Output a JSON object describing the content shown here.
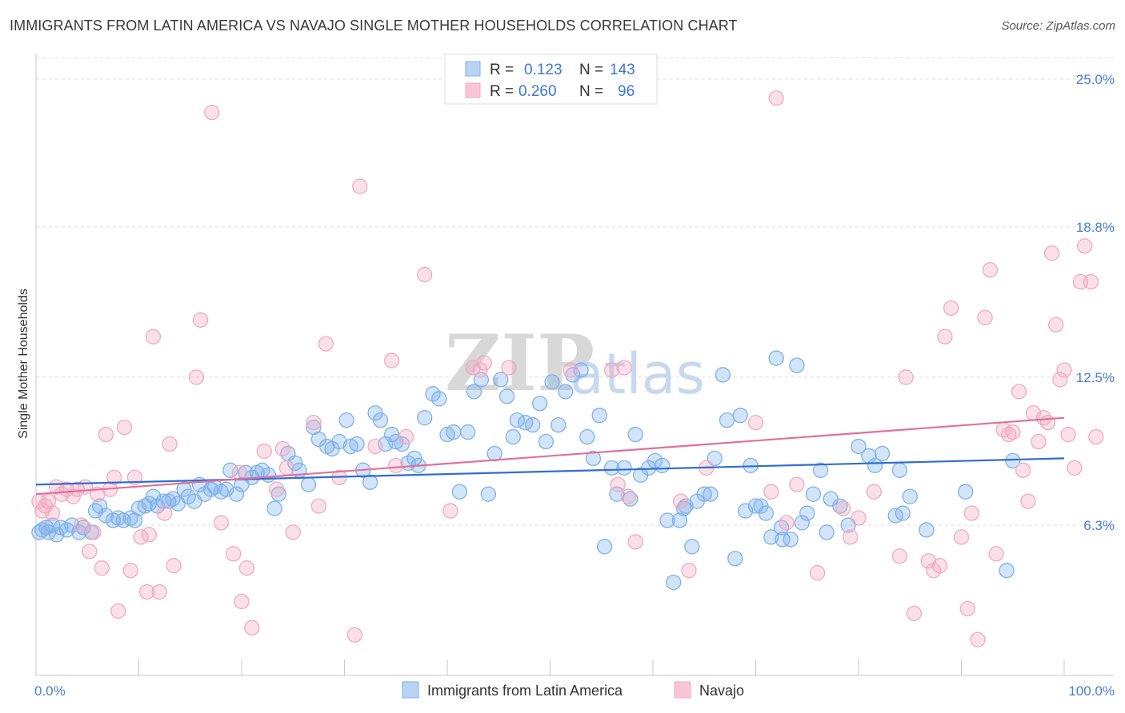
{
  "title": "IMMIGRANTS FROM LATIN AMERICA VS NAVAJO SINGLE MOTHER HOUSEHOLDS CORRELATION CHART",
  "source": "Source: ZipAtlas.com",
  "watermark": {
    "zip": "ZIP",
    "atlas": "atlas"
  },
  "chart_data": {
    "type": "scatter",
    "title": "IMMIGRANTS FROM LATIN AMERICA VS NAVAJO SINGLE MOTHER HOUSEHOLDS CORRELATION CHART",
    "xlabel": "",
    "ylabel": "Single Mother Households",
    "xlim": [
      0,
      100
    ],
    "ylim": [
      0,
      26
    ],
    "y_ticks": [
      6.3,
      12.5,
      18.8,
      25.0
    ],
    "y_tick_labels": [
      "6.3%",
      "12.5%",
      "18.8%",
      "25.0%"
    ],
    "x_tick_labels": [
      "0.0%",
      "100.0%"
    ],
    "grid": true,
    "legend_stats": [
      {
        "r_label": "R =",
        "r": "0.123",
        "n_label": "N =",
        "n": "143"
      },
      {
        "r_label": "R =",
        "r": "0.260",
        "n_label": "N =",
        "n": "96"
      }
    ],
    "series": [
      {
        "name": "Immigrants from Latin America",
        "color": "#7eb1ea",
        "line_color": "#2f6fd0",
        "trend": [
          [
            0,
            8.0
          ],
          [
            100,
            9.1
          ]
        ],
        "points": [
          [
            0.3,
            6.0
          ],
          [
            0.6,
            6.1
          ],
          [
            1.0,
            6.2
          ],
          [
            1.2,
            6.0
          ],
          [
            1.6,
            6.3
          ],
          [
            2.0,
            5.9
          ],
          [
            2.4,
            6.2
          ],
          [
            3.0,
            6.1
          ],
          [
            3.5,
            6.3
          ],
          [
            4.2,
            6.0
          ],
          [
            4.6,
            6.2
          ],
          [
            5.4,
            6.0
          ],
          [
            5.8,
            6.9
          ],
          [
            6.2,
            7.1
          ],
          [
            6.8,
            6.7
          ],
          [
            7.5,
            6.5
          ],
          [
            8.0,
            6.6
          ],
          [
            8.5,
            6.5
          ],
          [
            9.2,
            6.6
          ],
          [
            9.6,
            6.5
          ],
          [
            10.0,
            7.0
          ],
          [
            10.6,
            7.1
          ],
          [
            11.0,
            7.2
          ],
          [
            11.4,
            7.5
          ],
          [
            11.8,
            7.1
          ],
          [
            12.4,
            7.3
          ],
          [
            12.9,
            7.3
          ],
          [
            13.3,
            7.4
          ],
          [
            13.8,
            7.2
          ],
          [
            14.4,
            7.8
          ],
          [
            14.8,
            7.5
          ],
          [
            15.4,
            7.3
          ],
          [
            15.9,
            8.0
          ],
          [
            16.4,
            7.6
          ],
          [
            17.0,
            7.8
          ],
          [
            17.4,
            7.9
          ],
          [
            18.0,
            7.7
          ],
          [
            18.5,
            7.8
          ],
          [
            18.9,
            8.6
          ],
          [
            19.5,
            7.6
          ],
          [
            20.0,
            8.0
          ],
          [
            20.4,
            8.5
          ],
          [
            21.0,
            8.3
          ],
          [
            21.5,
            8.5
          ],
          [
            22.0,
            8.6
          ],
          [
            22.6,
            8.4
          ],
          [
            23.2,
            7.0
          ],
          [
            23.6,
            7.6
          ],
          [
            24.5,
            9.3
          ],
          [
            25.2,
            8.9
          ],
          [
            25.6,
            8.6
          ],
          [
            26.5,
            8.0
          ],
          [
            27.0,
            10.4
          ],
          [
            27.5,
            9.9
          ],
          [
            28.3,
            9.6
          ],
          [
            28.8,
            9.5
          ],
          [
            29.5,
            9.8
          ],
          [
            30.2,
            10.7
          ],
          [
            30.6,
            9.6
          ],
          [
            31.2,
            9.7
          ],
          [
            31.8,
            8.6
          ],
          [
            32.5,
            8.1
          ],
          [
            33.0,
            11.0
          ],
          [
            33.5,
            10.7
          ],
          [
            34.0,
            9.7
          ],
          [
            34.6,
            10.1
          ],
          [
            35.0,
            9.8
          ],
          [
            35.6,
            9.7
          ],
          [
            36.2,
            8.9
          ],
          [
            36.8,
            9.1
          ],
          [
            37.2,
            8.8
          ],
          [
            37.8,
            10.8
          ],
          [
            38.6,
            11.8
          ],
          [
            39.2,
            11.6
          ],
          [
            40.0,
            10.1
          ],
          [
            40.6,
            10.2
          ],
          [
            41.2,
            7.7
          ],
          [
            42.0,
            10.2
          ],
          [
            42.6,
            11.9
          ],
          [
            43.3,
            12.4
          ],
          [
            44.0,
            7.6
          ],
          [
            44.6,
            9.3
          ],
          [
            45.2,
            12.4
          ],
          [
            45.8,
            11.7
          ],
          [
            46.4,
            10.0
          ],
          [
            46.8,
            10.7
          ],
          [
            47.6,
            10.6
          ],
          [
            48.3,
            10.5
          ],
          [
            49.0,
            11.4
          ],
          [
            49.6,
            9.8
          ],
          [
            50.2,
            12.3
          ],
          [
            50.8,
            10.5
          ],
          [
            51.5,
            11.9
          ],
          [
            52.2,
            12.6
          ],
          [
            53.0,
            12.8
          ],
          [
            53.6,
            10.0
          ],
          [
            54.2,
            9.1
          ],
          [
            54.8,
            10.9
          ],
          [
            55.3,
            5.4
          ],
          [
            56.0,
            8.7
          ],
          [
            56.5,
            7.6
          ],
          [
            57.2,
            8.7
          ],
          [
            57.8,
            7.4
          ],
          [
            58.3,
            10.1
          ],
          [
            58.8,
            8.4
          ],
          [
            59.6,
            8.7
          ],
          [
            60.2,
            9.0
          ],
          [
            60.9,
            8.8
          ],
          [
            61.4,
            6.5
          ],
          [
            62.0,
            3.9
          ],
          [
            62.6,
            6.5
          ],
          [
            63.2,
            7.1
          ],
          [
            63.8,
            5.4
          ],
          [
            64.3,
            7.3
          ],
          [
            65.0,
            7.6
          ],
          [
            65.6,
            7.6
          ],
          [
            66.0,
            9.1
          ],
          [
            66.8,
            12.6
          ],
          [
            67.2,
            10.7
          ],
          [
            68.0,
            4.9
          ],
          [
            68.5,
            10.9
          ],
          [
            69.0,
            6.9
          ],
          [
            69.5,
            8.8
          ],
          [
            70.0,
            7.1
          ],
          [
            70.5,
            7.1
          ],
          [
            71.0,
            6.8
          ],
          [
            71.5,
            5.8
          ],
          [
            72.0,
            13.3
          ],
          [
            72.6,
            5.7
          ],
          [
            73.4,
            5.7
          ],
          [
            74.0,
            13.0
          ],
          [
            74.5,
            6.4
          ],
          [
            75.0,
            6.8
          ],
          [
            75.6,
            7.6
          ],
          [
            76.3,
            8.6
          ],
          [
            76.9,
            6.0
          ],
          [
            77.3,
            7.4
          ],
          [
            78.2,
            7.1
          ],
          [
            79.0,
            6.3
          ],
          [
            80.0,
            9.6
          ],
          [
            81.0,
            9.2
          ],
          [
            81.6,
            8.8
          ],
          [
            82.3,
            9.3
          ],
          [
            83.6,
            6.7
          ],
          [
            84.0,
            8.6
          ],
          [
            84.3,
            6.8
          ],
          [
            85.0,
            7.5
          ],
          [
            86.6,
            6.1
          ],
          [
            90.4,
            7.7
          ],
          [
            94.4,
            4.4
          ],
          [
            95.0,
            9.0
          ],
          [
            63.0,
            7.0
          ],
          [
            72.5,
            6.2
          ]
        ]
      },
      {
        "name": "Navajo",
        "color": "#f2a9c0",
        "line_color": "#e0709b",
        "trend": [
          [
            0,
            7.6
          ],
          [
            100,
            10.8
          ]
        ],
        "points": [
          [
            0.3,
            7.3
          ],
          [
            0.6,
            6.9
          ],
          [
            0.9,
            7.1
          ],
          [
            1.2,
            7.3
          ],
          [
            1.6,
            6.8
          ],
          [
            2.0,
            7.9
          ],
          [
            2.5,
            7.6
          ],
          [
            3.0,
            7.8
          ],
          [
            3.6,
            7.5
          ],
          [
            4.0,
            7.8
          ],
          [
            4.4,
            6.3
          ],
          [
            4.8,
            7.9
          ],
          [
            5.2,
            5.2
          ],
          [
            5.6,
            6.0
          ],
          [
            6.0,
            7.6
          ],
          [
            6.4,
            4.5
          ],
          [
            6.8,
            10.1
          ],
          [
            7.2,
            7.8
          ],
          [
            7.6,
            8.3
          ],
          [
            8.0,
            2.7
          ],
          [
            8.6,
            10.4
          ],
          [
            9.2,
            4.4
          ],
          [
            9.6,
            8.3
          ],
          [
            10.2,
            5.8
          ],
          [
            10.8,
            3.5
          ],
          [
            11.0,
            5.9
          ],
          [
            11.4,
            14.2
          ],
          [
            12.0,
            3.5
          ],
          [
            12.5,
            6.8
          ],
          [
            13.0,
            9.7
          ],
          [
            13.4,
            4.6
          ],
          [
            15.6,
            12.5
          ],
          [
            16.0,
            14.9
          ],
          [
            17.1,
            23.6
          ],
          [
            18.0,
            6.4
          ],
          [
            19.2,
            5.1
          ],
          [
            19.8,
            8.5
          ],
          [
            20.0,
            3.1
          ],
          [
            20.5,
            4.5
          ],
          [
            21.0,
            2.0
          ],
          [
            22.2,
            9.4
          ],
          [
            23.4,
            7.8
          ],
          [
            24.0,
            9.5
          ],
          [
            24.4,
            8.7
          ],
          [
            25.0,
            6.0
          ],
          [
            27.0,
            10.6
          ],
          [
            27.5,
            7.1
          ],
          [
            28.2,
            13.9
          ],
          [
            29.5,
            8.3
          ],
          [
            31.0,
            1.7
          ],
          [
            31.5,
            20.5
          ],
          [
            33.0,
            9.6
          ],
          [
            34.6,
            13.2
          ],
          [
            35.0,
            8.8
          ],
          [
            36.0,
            10.0
          ],
          [
            37.8,
            16.8
          ],
          [
            40.3,
            6.9
          ],
          [
            42.5,
            12.9
          ],
          [
            43.2,
            12.8
          ],
          [
            43.6,
            13.1
          ],
          [
            46.0,
            12.9
          ],
          [
            52.0,
            12.8
          ],
          [
            56.0,
            12.8
          ],
          [
            56.6,
            8.0
          ],
          [
            57.2,
            12.9
          ],
          [
            57.6,
            7.5
          ],
          [
            58.3,
            5.6
          ],
          [
            62.7,
            7.3
          ],
          [
            63.5,
            4.4
          ],
          [
            65.2,
            8.7
          ],
          [
            70.0,
            10.6
          ],
          [
            71.5,
            7.7
          ],
          [
            72.0,
            24.2
          ],
          [
            73.0,
            6.4
          ],
          [
            74.0,
            8.0
          ],
          [
            76.0,
            4.3
          ],
          [
            78.5,
            7.0
          ],
          [
            79.2,
            5.8
          ],
          [
            80.0,
            6.6
          ],
          [
            81.5,
            7.7
          ],
          [
            84.0,
            5.0
          ],
          [
            84.6,
            12.5
          ],
          [
            85.4,
            2.6
          ],
          [
            86.8,
            4.8
          ],
          [
            87.3,
            4.4
          ],
          [
            87.9,
            4.6
          ],
          [
            88.4,
            14.2
          ],
          [
            89.0,
            15.4
          ],
          [
            90.0,
            5.8
          ],
          [
            90.6,
            2.8
          ],
          [
            91.0,
            6.8
          ],
          [
            91.6,
            1.5
          ],
          [
            92.3,
            15.0
          ],
          [
            92.8,
            17.0
          ],
          [
            93.4,
            5.1
          ],
          [
            94.1,
            10.3
          ],
          [
            94.6,
            10.1
          ],
          [
            95.0,
            10.2
          ],
          [
            95.6,
            11.9
          ],
          [
            96.0,
            8.6
          ],
          [
            96.5,
            7.3
          ],
          [
            97.0,
            11.0
          ],
          [
            97.5,
            9.8
          ],
          [
            98.0,
            10.8
          ],
          [
            98.4,
            10.6
          ],
          [
            98.8,
            17.7
          ],
          [
            99.2,
            14.7
          ],
          [
            99.6,
            12.4
          ],
          [
            100.0,
            12.8
          ],
          [
            100.4,
            10.1
          ],
          [
            101.0,
            8.7
          ],
          [
            101.6,
            16.5
          ],
          [
            102.0,
            18.0
          ],
          [
            102.6,
            16.5
          ],
          [
            103.1,
            10.0
          ]
        ]
      }
    ]
  }
}
